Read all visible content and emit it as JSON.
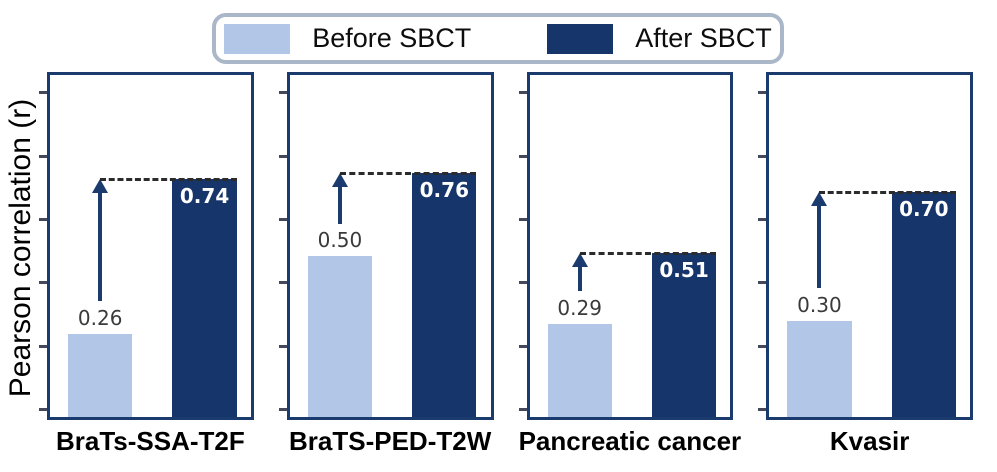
{
  "axis": {
    "ylabel": "Pearson correlation (r)"
  },
  "legend": {
    "items": [
      {
        "label": "Before SBCT",
        "swatch_color": "#b2c7e8"
      },
      {
        "label": "After SBCT",
        "swatch_color": "#16356b"
      }
    ]
  },
  "chart_data": {
    "type": "bar",
    "title": "",
    "ylabel": "Pearson correlation (r)",
    "categories": [
      "BraTs-SSA-T2F",
      "BraTS-PED-T2W",
      "Pancreatic cancer",
      "Kvasir"
    ],
    "series": [
      {
        "name": "Before SBCT",
        "color": "#b2c7e8",
        "values": [
          0.26,
          0.5,
          0.29,
          0.3
        ],
        "labels": [
          "0.26",
          "0.50",
          "0.29",
          "0.30"
        ]
      },
      {
        "name": "After SBCT",
        "color": "#16356b",
        "values": [
          0.74,
          0.76,
          0.51,
          0.7
        ],
        "labels": [
          "0.74",
          "0.76",
          "0.51",
          "0.70"
        ]
      }
    ],
    "ylim": [
      0,
      1.065
    ],
    "yticks": {
      "count": 6,
      "labeled": false
    },
    "grid": false,
    "legend_position": "top-center",
    "annotation_style": "black dashed line at the top level of each After-SBCT bar, with a navy upward arrow rising from above each Before-SBCT bar to that line"
  },
  "colors": {
    "bar_before": "#b2c7e8",
    "bar_after": "#16356b",
    "panel_border": "#1b3a6d",
    "arrow": "#1b3a6d",
    "dashed_line": "#2b2b2b",
    "legend_border": "#aab7c8",
    "value_label_before": "#3a3a3a",
    "value_label_after": "#ffffff",
    "background": "#ffffff"
  }
}
